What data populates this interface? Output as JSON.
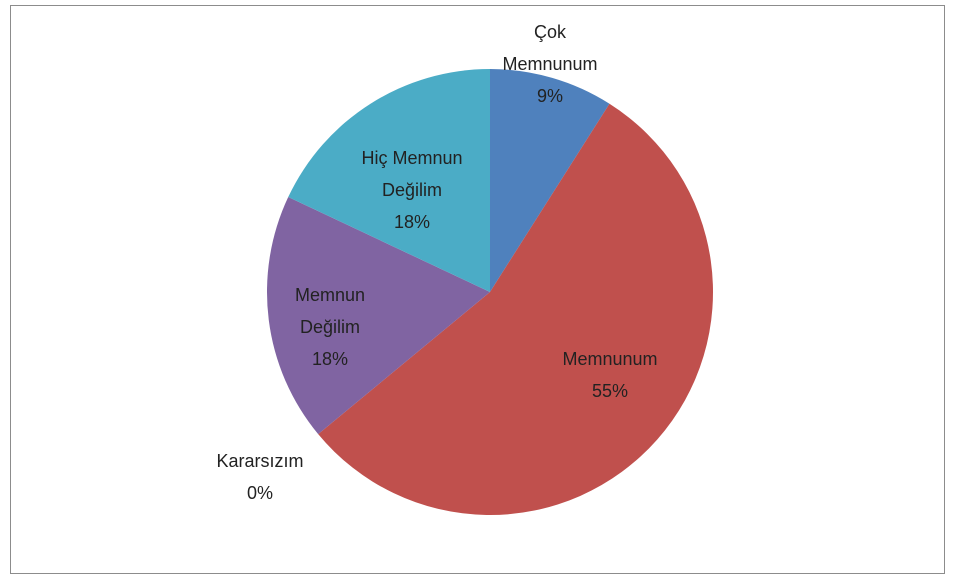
{
  "chart_data": {
    "type": "pie",
    "categories": [
      "Çok Memnunum",
      "Memnunum",
      "Kararsızım",
      "Memnun Değilim",
      "Hiç Memnun Değilim"
    ],
    "values": [
      9,
      55,
      0,
      18,
      18
    ],
    "value_labels": [
      "9%",
      "55%",
      "0%",
      "18%",
      "18%"
    ],
    "colors": [
      "#4f81bd",
      "#c0504d",
      "#9bbb59",
      "#8064a2",
      "#4bacc6"
    ]
  }
}
